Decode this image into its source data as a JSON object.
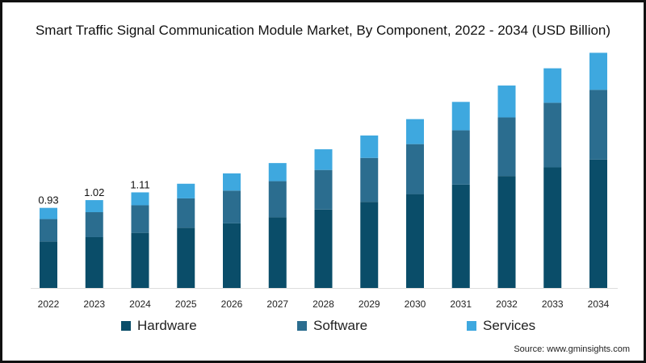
{
  "chart_data": {
    "type": "bar",
    "stacked": true,
    "title": "Smart Traffic Signal Communication Module Market, By Component, 2022 - 2034 (USD Billion)",
    "xlabel": "",
    "ylabel": "",
    "categories": [
      "2022",
      "2023",
      "2024",
      "2025",
      "2026",
      "2027",
      "2028",
      "2029",
      "2030",
      "2031",
      "2032",
      "2033",
      "2034"
    ],
    "series": [
      {
        "name": "Hardware",
        "color": "#0a4d69",
        "values": [
          0.54,
          0.59,
          0.64,
          0.7,
          0.75,
          0.82,
          0.91,
          1.0,
          1.09,
          1.2,
          1.3,
          1.4,
          1.49
        ]
      },
      {
        "name": "Software",
        "color": "#2b6d8f",
        "values": [
          0.26,
          0.29,
          0.32,
          0.34,
          0.38,
          0.42,
          0.46,
          0.51,
          0.58,
          0.63,
          0.68,
          0.75,
          0.81
        ]
      },
      {
        "name": "Services",
        "color": "#3ea8df",
        "values": [
          0.13,
          0.14,
          0.15,
          0.17,
          0.2,
          0.21,
          0.24,
          0.26,
          0.29,
          0.33,
          0.37,
          0.4,
          0.43
        ]
      }
    ],
    "data_labels": {
      "2022": "0.93",
      "2023": "1.02",
      "2024": "1.11"
    },
    "ylim": [
      0,
      2.8
    ],
    "grid": false,
    "legend_position": "bottom"
  },
  "source": "Source: www.gminsights.com"
}
